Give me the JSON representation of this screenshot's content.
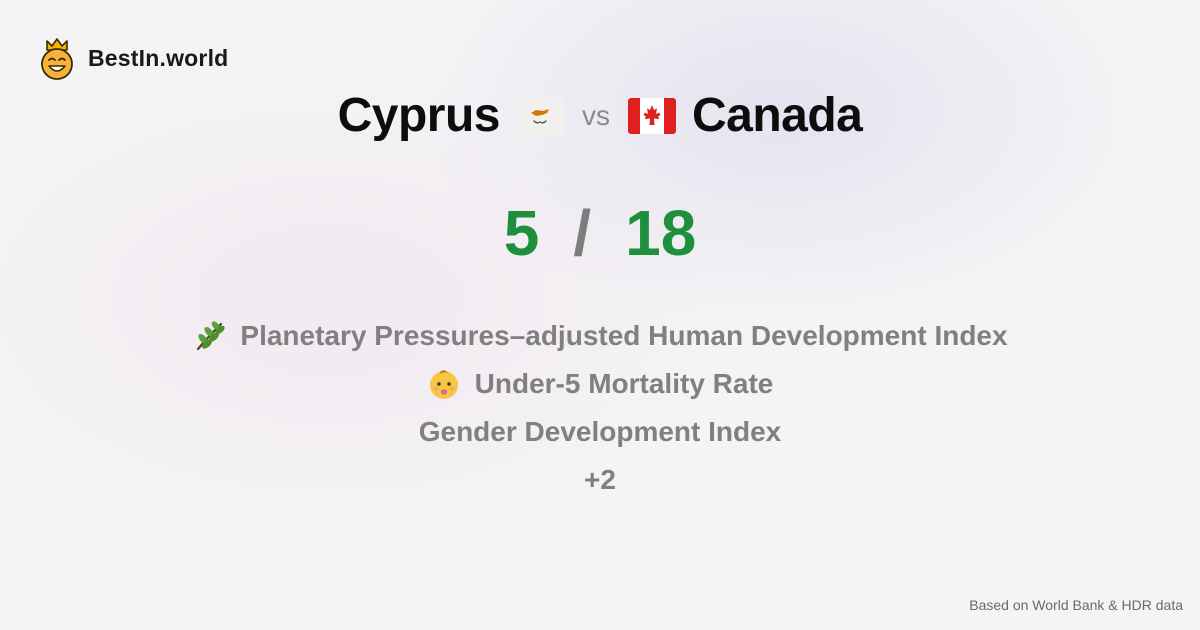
{
  "brand": {
    "name": "BestIn.world",
    "logo_icon": "crowned-smiley-icon"
  },
  "comparison": {
    "left": {
      "name": "Cyprus",
      "flag_icon": "cyprus-flag-icon"
    },
    "separator": "vs",
    "right": {
      "name": "Canada",
      "flag_icon": "canada-flag-icon"
    }
  },
  "score": {
    "left": "5",
    "separator": "/",
    "right": "18",
    "color": "#1e8f3c"
  },
  "metrics": [
    {
      "label": "Planetary Pressures–adjusted Human Development Index",
      "icon": "herb-icon"
    },
    {
      "label": "Under-5 Mortality Rate",
      "icon": "baby-icon"
    },
    {
      "label": "Gender Development Index",
      "icon": ""
    },
    {
      "label": "+2",
      "icon": ""
    }
  ],
  "footer": {
    "source": "Based on World Bank & HDR data"
  }
}
